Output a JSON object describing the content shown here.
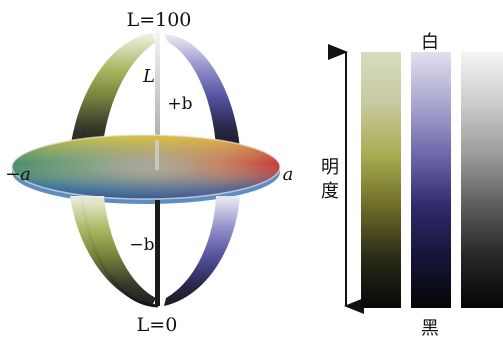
{
  "sphere": {
    "top_label": "L=100",
    "bottom_label": "L=0",
    "axis_l_label": "L",
    "plus_b_label": "+b",
    "minus_b_label": "−b",
    "minus_a_label": "−a",
    "plus_a_label": "a"
  },
  "strips": {
    "white_label": "白",
    "black_label": "黑",
    "lightness_label_1": "明",
    "lightness_label_2": "度",
    "items": [
      {
        "name": "yellow-green",
        "colors": [
          "#d8dcc0",
          "#c8c9a0",
          "#a9ad52",
          "#6e6e28",
          "#2a2b18",
          "#070707"
        ]
      },
      {
        "name": "blue-violet",
        "colors": [
          "#e2e0ee",
          "#a9a7cf",
          "#6d69ab",
          "#2f2c6e",
          "#141536",
          "#060608"
        ]
      },
      {
        "name": "gray",
        "colors": [
          "#f4f4f4",
          "#cccccc",
          "#9c9c9c",
          "#5d5d5d",
          "#272727",
          "#050505"
        ]
      }
    ]
  },
  "colors": {
    "red": "#c8232e",
    "yellow": "#e0be28",
    "green": "#6b9e45",
    "blue": "#3a68a8",
    "violet": "#3f3a82"
  }
}
